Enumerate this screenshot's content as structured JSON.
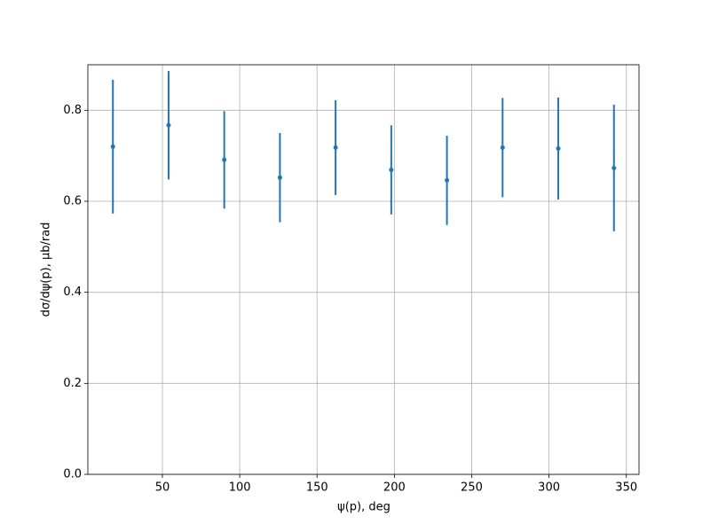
{
  "chart_data": {
    "type": "errorbar",
    "xlabel": "ψ(p), deg",
    "ylabel": "dσ/dψ(p), μb/rad",
    "x": [
      18,
      54,
      90,
      126,
      162,
      198,
      234,
      270,
      306,
      342
    ],
    "series": [
      {
        "color": "#1f77b4",
        "values": [
          0.72,
          0.767,
          0.691,
          0.652,
          0.718,
          0.669,
          0.646,
          0.718,
          0.716,
          0.673
        ],
        "errors": [
          0.147,
          0.119,
          0.107,
          0.098,
          0.104,
          0.098,
          0.098,
          0.109,
          0.112,
          0.139
        ]
      }
    ],
    "xlim": [
      1.8,
      358.2
    ],
    "xticks": [
      50,
      100,
      150,
      200,
      250,
      300,
      350
    ],
    "ylim": [
      0,
      0.9
    ],
    "yticks": [
      {
        "value": 0,
        "label": "0.0"
      },
      0.2,
      0.4,
      0.6,
      0.8
    ],
    "grid": true
  }
}
